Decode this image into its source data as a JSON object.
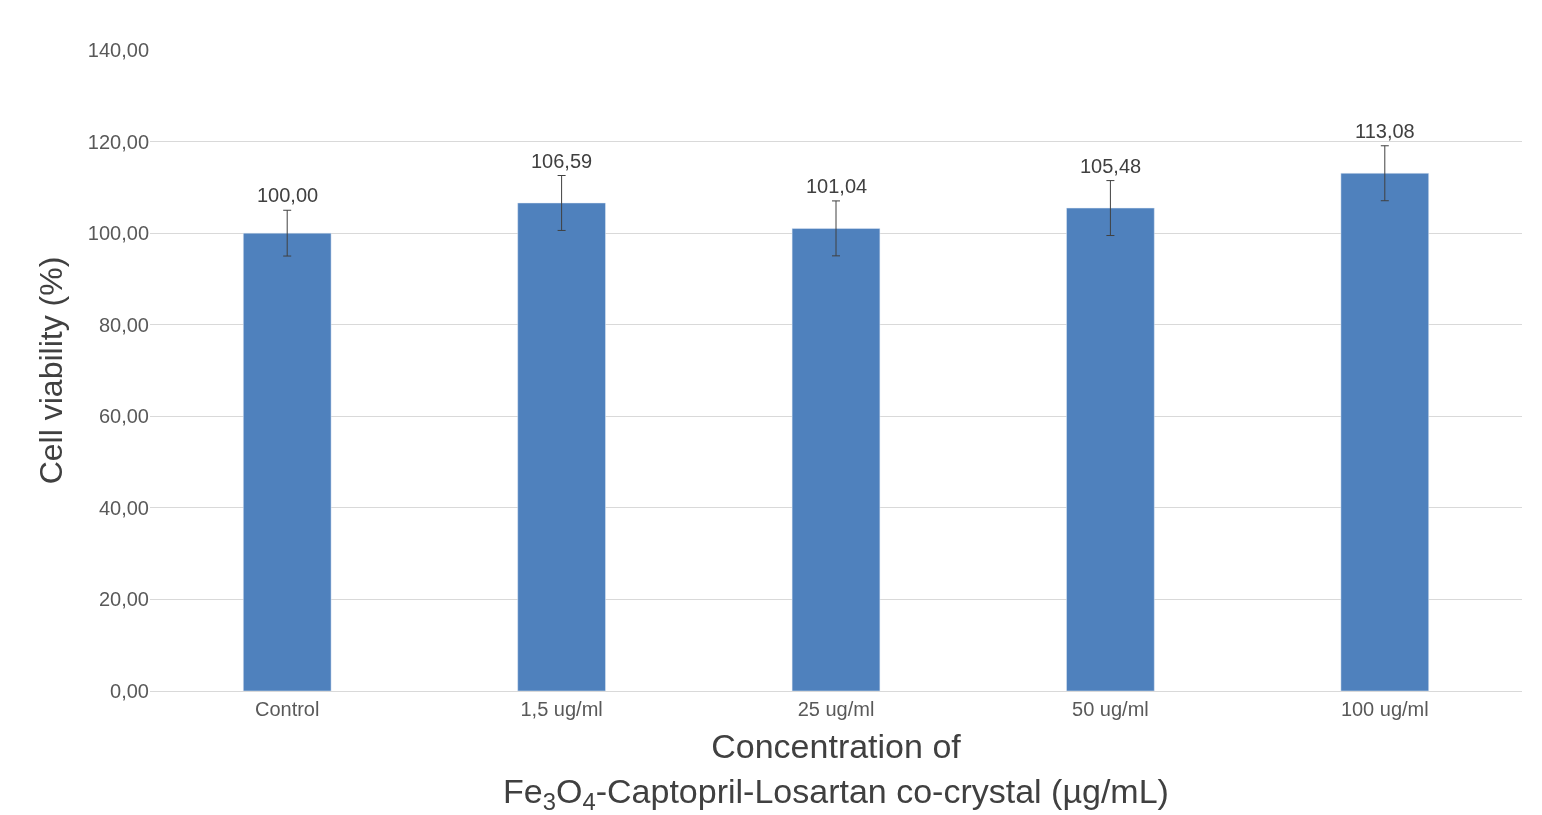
{
  "chart_data": {
    "type": "bar",
    "xlabel": "Concentration of\nFe$_{3}$O$_{4}$-Captopril-Losartan co-crystal (µg/mL)",
    "ylabel": "Cell viability (%)",
    "categories": [
      "Control",
      "1,5 ug/ml",
      "25 ug/ml",
      "50 ug/ml",
      "100 ug/ml"
    ],
    "values": [
      100.0,
      106.59,
      101.04,
      105.48,
      113.08
    ],
    "value_labels": [
      "100,00",
      "106,59",
      "101,04",
      "105,48",
      "113,08"
    ],
    "errors": [
      5,
      6,
      6,
      6,
      6
    ],
    "color": "#4f81bd",
    "ylim": [
      0,
      140
    ],
    "yticks": [
      {
        "value": 0,
        "label": "0,00"
      },
      {
        "value": 20,
        "label": "20,00"
      },
      {
        "value": 40,
        "label": "40,00"
      },
      {
        "value": 60,
        "label": "60,00"
      },
      {
        "value": 80,
        "label": "80,00"
      },
      {
        "value": 100,
        "label": "100,00"
      },
      {
        "value": 120,
        "label": "120,00"
      },
      {
        "value": 140,
        "label": "140,00"
      }
    ],
    "grid": "y"
  }
}
